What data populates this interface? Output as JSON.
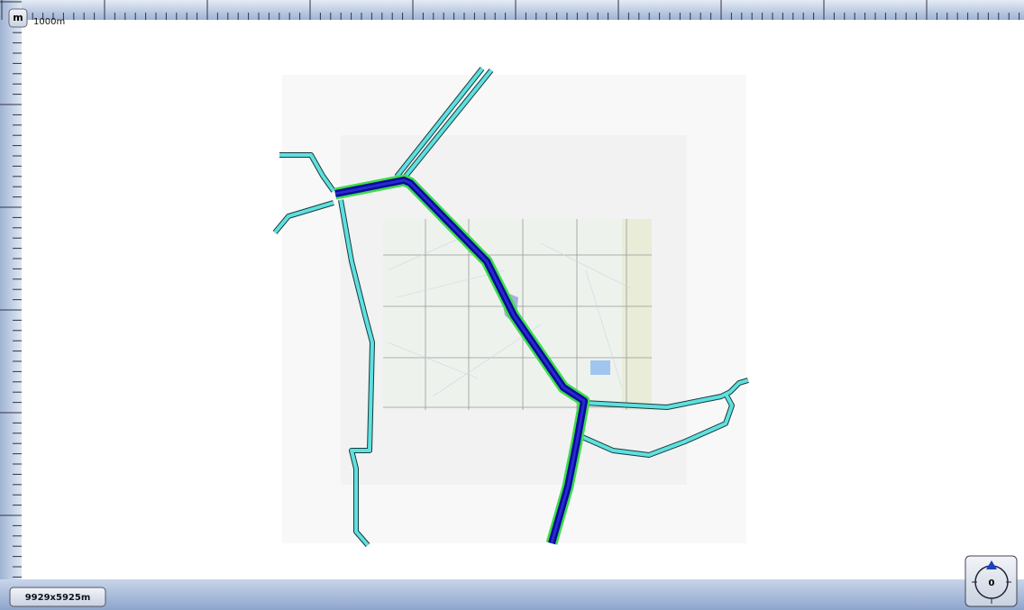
{
  "ruler": {
    "unit_button": "m",
    "scale_label": "1000m"
  },
  "status": {
    "dimensions": "9929x5925m"
  },
  "compass": {
    "heading": "0"
  }
}
